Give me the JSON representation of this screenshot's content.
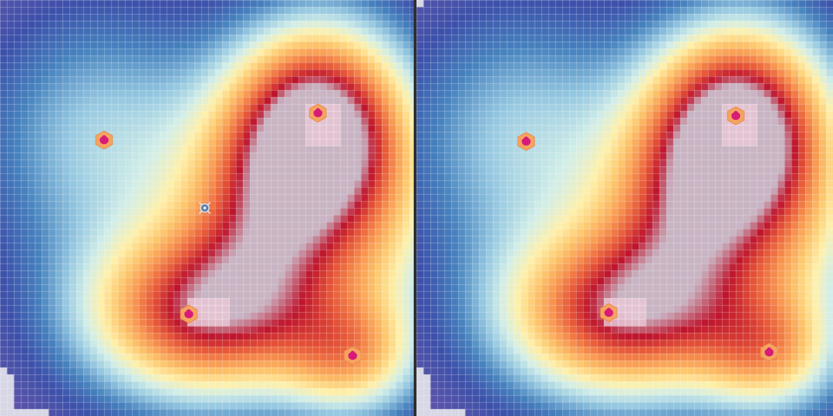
{
  "scene": {
    "type": "heatmap-grid-environment",
    "panels": [
      {
        "id": "left",
        "show_agent": true
      },
      {
        "id": "right",
        "show_agent": false
      }
    ],
    "colors": {
      "background": "#dcdce8",
      "divider": "#2e2e2e",
      "target_fill": "#d81b78",
      "target_ring": "#f4a460",
      "agent_body": "#5b7fa8"
    },
    "icons": {
      "target": "hexagon-target-icon",
      "agent": "robot-agent-icon"
    }
  }
}
